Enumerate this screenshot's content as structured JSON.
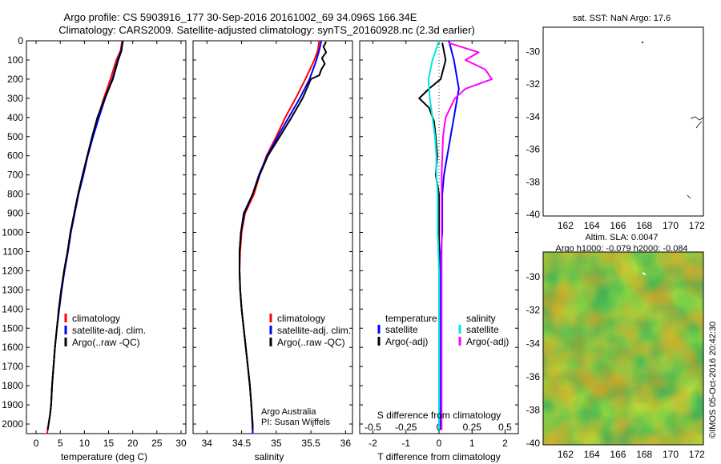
{
  "header": {
    "line1": "Argo profile: CS 5903916_177 30-Sep-2016 20161002_69 34.096S 166.34E",
    "line2": "Climatology: CARS2009. Satellite-adjusted climatology: synTS_20160928.nc (2.3d earlier)"
  },
  "colors": {
    "climatology": "#ff0000",
    "satellite": "#0000ff",
    "argo": "#000000",
    "satellite_salinity_diff": "#00e5e5",
    "argo_salinity_diff": "#ff00ff",
    "float_marker": "#22cc22"
  },
  "credit": "©IMOS 05-Oct-2016 20:42:30",
  "chart_data": [
    {
      "type": "line",
      "id": "temperature",
      "xlabel": "temperature (deg C)",
      "xlim": [
        -2,
        31
      ],
      "ylim": [
        0,
        2050
      ],
      "y_reversed": true,
      "xticks": [
        0,
        5,
        10,
        15,
        20,
        25,
        30
      ],
      "yticks": [
        0,
        100,
        200,
        300,
        400,
        500,
        600,
        700,
        800,
        900,
        1000,
        1100,
        1200,
        1300,
        1400,
        1500,
        1600,
        1700,
        1800,
        1900,
        2000
      ],
      "legend": [
        "climatology",
        "satellite-adj. clim.",
        "Argo(..raw -QC)"
      ],
      "series": [
        {
          "name": "climatology",
          "color": "#ff0000",
          "x": [
            17.8,
            17.5,
            16.6,
            15.4,
            14.0,
            12.8,
            11.7,
            10.6,
            9.7,
            8.7,
            7.9,
            7.1,
            6.5,
            5.8,
            5.2,
            4.7,
            4.3,
            3.9,
            3.6,
            3.3,
            3.1,
            2.9,
            2.6,
            2.4,
            2.3
          ],
          "y": [
            0,
            50,
            100,
            200,
            300,
            400,
            500,
            600,
            700,
            800,
            900,
            1000,
            1100,
            1200,
            1300,
            1400,
            1500,
            1600,
            1700,
            1800,
            1900,
            1950,
            2000,
            2030,
            2050
          ]
        },
        {
          "name": "satellite-adj. clim.",
          "color": "#0000ff",
          "x": [
            18.0,
            17.6,
            16.9,
            15.8,
            14.3,
            13.0,
            11.8,
            10.7,
            9.8,
            8.8,
            8.0,
            7.2,
            6.6,
            5.9,
            5.3,
            4.8,
            4.3,
            3.9,
            3.6,
            3.3,
            3.1,
            2.9,
            2.6,
            2.4
          ],
          "y": [
            0,
            50,
            100,
            200,
            300,
            400,
            500,
            600,
            700,
            800,
            900,
            1000,
            1100,
            1200,
            1300,
            1400,
            1500,
            1600,
            1700,
            1800,
            1900,
            1950,
            2000,
            2030
          ]
        },
        {
          "name": "Argo(..raw -QC)",
          "color": "#000000",
          "x": [
            17.9,
            17.7,
            17.0,
            15.9,
            14.2,
            12.7,
            11.6,
            10.6,
            9.6,
            8.7,
            7.9,
            7.1,
            6.5,
            5.8,
            5.2,
            4.7,
            4.3,
            3.9,
            3.6,
            3.3,
            3.1,
            2.9,
            2.6,
            2.4
          ],
          "y": [
            5,
            50,
            100,
            200,
            300,
            400,
            500,
            600,
            700,
            800,
            900,
            1000,
            1100,
            1200,
            1300,
            1400,
            1500,
            1600,
            1700,
            1800,
            1900,
            1950,
            2000,
            2030
          ]
        }
      ]
    },
    {
      "type": "line",
      "id": "salinity",
      "xlabel": "salinity",
      "xlim": [
        33.8,
        36.1
      ],
      "ylim": [
        0,
        2050
      ],
      "y_reversed": true,
      "xticks": [
        34,
        34.5,
        35,
        35.5,
        36
      ],
      "legend": [
        "climatology",
        "satellite-adj. clim.",
        "Argo(..raw -QC)"
      ],
      "annotation": [
        "Argo Australia",
        "PI: Susan Wijffels"
      ],
      "series": [
        {
          "name": "climatology",
          "color": "#ff0000",
          "x": [
            35.62,
            35.6,
            35.55,
            35.42,
            35.28,
            35.13,
            35.0,
            34.86,
            34.76,
            34.68,
            34.55,
            34.5,
            34.48,
            34.47,
            34.48,
            34.5,
            34.53,
            34.56,
            34.59,
            34.62,
            34.64,
            34.66,
            34.66
          ],
          "y": [
            0,
            50,
            100,
            200,
            300,
            400,
            500,
            600,
            700,
            800,
            900,
            1000,
            1100,
            1200,
            1300,
            1400,
            1500,
            1600,
            1700,
            1800,
            1900,
            2000,
            2050
          ]
        },
        {
          "name": "satellite-adj. clim.",
          "color": "#0000ff",
          "x": [
            35.65,
            35.62,
            35.58,
            35.48,
            35.34,
            35.18,
            35.02,
            34.87,
            34.75,
            34.66,
            34.53,
            34.49,
            34.47,
            34.47,
            34.48,
            34.5,
            34.53,
            34.56,
            34.59,
            34.62,
            34.64,
            34.66,
            34.66
          ],
          "y": [
            0,
            50,
            100,
            200,
            300,
            400,
            500,
            600,
            700,
            800,
            900,
            1000,
            1100,
            1200,
            1300,
            1400,
            1500,
            1600,
            1700,
            1800,
            1900,
            2000,
            2050
          ]
        },
        {
          "name": "Argo(..raw -QC)",
          "color": "#000000",
          "x": [
            35.72,
            35.68,
            35.72,
            35.66,
            35.7,
            35.65,
            35.62,
            35.5,
            35.38,
            35.22,
            35.05,
            34.88,
            34.76,
            34.66,
            34.54,
            34.49,
            34.47,
            34.47,
            34.48,
            34.5,
            34.53,
            34.56,
            34.59,
            34.62,
            34.64,
            34.66
          ],
          "y": [
            5,
            30,
            60,
            90,
            120,
            150,
            180,
            200,
            300,
            400,
            500,
            600,
            700,
            800,
            900,
            1000,
            1100,
            1200,
            1300,
            1400,
            1500,
            1600,
            1700,
            1800,
            1900,
            2030
          ]
        }
      ]
    },
    {
      "type": "line",
      "id": "difference",
      "xlabel": "T difference from climatology",
      "xlabel_top": "S difference from climatology",
      "xlim": [
        -2.4,
        2.4
      ],
      "ylim": [
        0,
        2050
      ],
      "y_reversed": true,
      "xticks": [
        -2,
        -1,
        0,
        1,
        2
      ],
      "xticks_salinity": [
        -0.5,
        -0.25,
        0,
        0.25,
        0.5
      ],
      "legend_temperature": {
        "title": "temperature",
        "items": [
          "satellite",
          "Argo(-adj)"
        ]
      },
      "legend_salinity": {
        "title": "salinity",
        "items": [
          "satellite",
          "Argo(-adj)"
        ]
      },
      "series": [
        {
          "name": "temperature satellite",
          "color": "#0000ff",
          "x": [
            0.3,
            0.45,
            0.55,
            0.6,
            0.55,
            0.45,
            0.35,
            0.25,
            0.15,
            0.1,
            0.1,
            0.1,
            0.05,
            0.05,
            0.05,
            0.05,
            0.05,
            0.05,
            0.05,
            0.05,
            0.05,
            0.05
          ],
          "y": [
            0,
            100,
            200,
            250,
            300,
            400,
            500,
            600,
            700,
            800,
            900,
            1000,
            1100,
            1200,
            1300,
            1400,
            1500,
            1600,
            1700,
            1800,
            1900,
            2030
          ]
        },
        {
          "name": "temperature Argo(-adj)",
          "color": "#000000",
          "x": [
            0.1,
            0.2,
            0.05,
            -0.3,
            -0.6,
            -0.3,
            -0.15,
            -0.1,
            -0.05,
            -0.1,
            0.0,
            0.0,
            0.0,
            0.0,
            0.0
          ],
          "y": [
            10,
            100,
            200,
            250,
            300,
            350,
            420,
            500,
            600,
            700,
            800,
            1000,
            1400,
            1800,
            2030
          ]
        },
        {
          "name": "salinity satellite",
          "color": "#00e5e5",
          "x": [
            0.0,
            -0.05,
            -0.08,
            -0.07,
            -0.05,
            -0.03,
            -0.02,
            -0.02,
            -0.01,
            -0.01,
            0.0,
            0.0,
            0.0,
            0.0
          ],
          "y": [
            0,
            100,
            200,
            300,
            400,
            500,
            600,
            700,
            800,
            1000,
            1200,
            1500,
            1800,
            2030
          ]
        },
        {
          "name": "salinity Argo(-adj)",
          "color": "#ff00ff",
          "x": [
            0.07,
            0.3,
            0.2,
            0.35,
            0.4,
            0.2,
            0.12,
            0.05,
            0.03,
            0.02,
            0.02,
            0.02,
            0.02,
            0.02
          ],
          "y": [
            10,
            60,
            100,
            150,
            200,
            250,
            300,
            400,
            500,
            700,
            900,
            1200,
            1600,
            2030
          ]
        }
      ]
    },
    {
      "type": "scatter",
      "id": "sst-map",
      "title": "sat. SST: NaN Argo: 17.6",
      "xlim": [
        160.3,
        172.5
      ],
      "ylim": [
        -40.1,
        -28.5
      ],
      "xticks": [
        162,
        164,
        166,
        168,
        170,
        172
      ],
      "yticks": [
        -30,
        -32,
        -34,
        -36,
        -38,
        -40
      ],
      "points": [
        {
          "x": 166.34,
          "y": -34.096
        }
      ]
    },
    {
      "type": "heatmap",
      "id": "sla-map",
      "title_line1": "Altim. SLA: 0.0047",
      "title_line2": "Argo h1000: -0.079 h2000: -0.084",
      "xlim": [
        160.3,
        172.5
      ],
      "ylim": [
        -40.1,
        -28.5
      ],
      "xticks": [
        162,
        164,
        166,
        168,
        170,
        172
      ],
      "yticks": [
        -30,
        -32,
        -34,
        -36,
        -38,
        -40
      ],
      "points": [
        {
          "x": 166.34,
          "y": -34.096
        }
      ]
    }
  ]
}
